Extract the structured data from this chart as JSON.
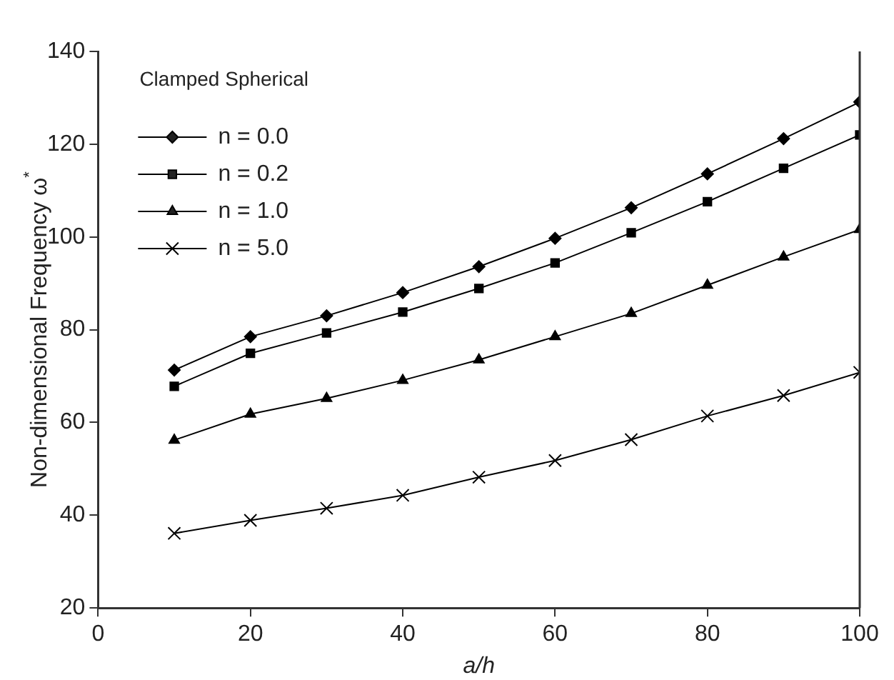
{
  "chart_data": {
    "type": "line",
    "xlabel": "a/h",
    "ylabel": "Non-dimensional Frequency ω$^{*}$",
    "legend_title": "Clamped Spherical",
    "legend": "top left",
    "grid": false,
    "line_style": "solid",
    "x": [
      10,
      20,
      30,
      40,
      50,
      60,
      70,
      80,
      90,
      100
    ],
    "xlim": [
      0,
      100
    ],
    "xticks": [
      0,
      20,
      40,
      60,
      80,
      100
    ],
    "ylim": [
      20,
      140
    ],
    "yticks": [
      20,
      40,
      60,
      80,
      100,
      120,
      140
    ],
    "series": [
      {
        "name": "n = 0.0",
        "color": "#000000",
        "marker": "diamond",
        "values": [
          71.3,
          78.5,
          83,
          88,
          93.6,
          99.7,
          106.3,
          113.6,
          121.2,
          129.1
        ]
      },
      {
        "name": "n = 0.2",
        "color": "#000000",
        "marker": "square",
        "values": [
          67.8,
          74.9,
          79.3,
          83.8,
          88.9,
          94.4,
          100.9,
          107.6,
          114.8,
          122.0
        ]
      },
      {
        "name": "n = 1.0",
        "color": "#000000",
        "marker": "triangle",
        "values": [
          56.2,
          61.8,
          65.2,
          69.1,
          73.5,
          78.5,
          83.5,
          89.6,
          95.7,
          101.6
        ]
      },
      {
        "name": "n = 5.0",
        "color": "#000000",
        "marker": "cross",
        "values": [
          36.1,
          38.9,
          41.5,
          44.3,
          48.2,
          51.8,
          56.3,
          61.4,
          65.8,
          70.8
        ]
      }
    ]
  }
}
